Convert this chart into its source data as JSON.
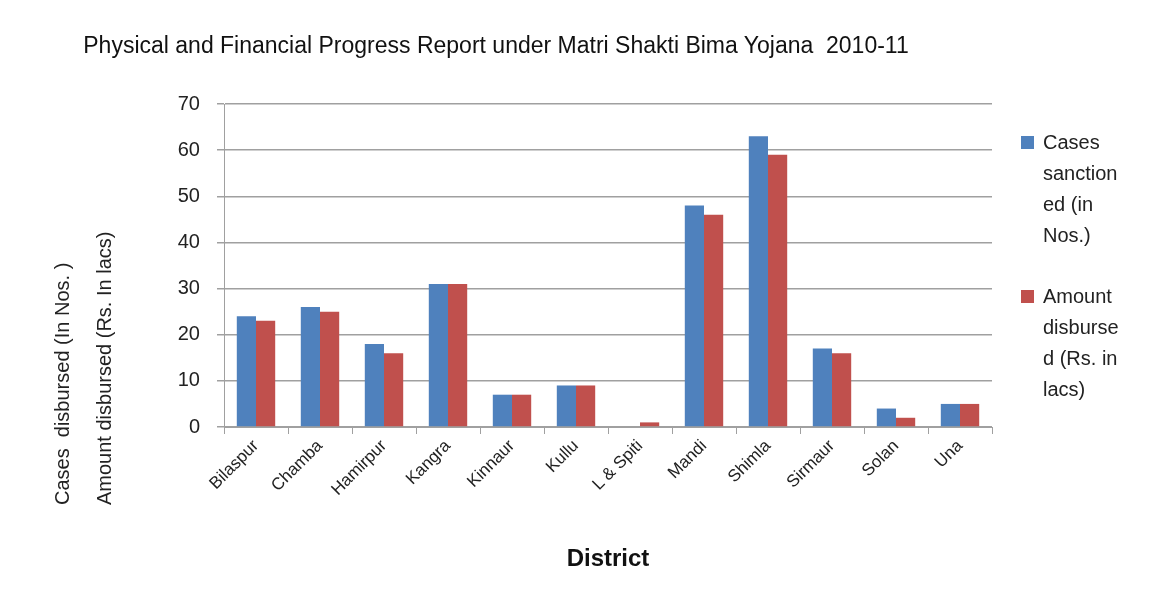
{
  "chart_data": {
    "type": "bar",
    "title": "Physical and Financial Progress Report under Matri Shakti Bima Yojana  2010-11",
    "xlabel": "District",
    "ylabel": "Cases  disbursed (In Nos. )\nAmount disbursed (Rs. In lacs)",
    "categories": [
      "Bilaspur",
      "Chamba",
      "Hamirpur",
      "Kangra",
      "Kinnaur",
      "Kullu",
      "L & Spiti",
      "Mandi",
      "Shimla",
      "Sirmaur",
      "Solan",
      "Una"
    ],
    "series": [
      {
        "name": "Cases sanctioned (in Nos.)",
        "color": "#4f81bd",
        "values": [
          24,
          26,
          18,
          31,
          7,
          9,
          0,
          48,
          63,
          17,
          4,
          5
        ]
      },
      {
        "name": "Amount disbursed (Rs. in lacs)",
        "color": "#c0504d",
        "values": [
          23,
          25,
          16,
          31,
          7,
          9,
          1,
          46,
          59,
          16,
          2,
          5
        ]
      }
    ],
    "ylim": [
      0,
      70
    ],
    "yticks": [
      0,
      10,
      20,
      30,
      40,
      50,
      60,
      70
    ],
    "grid": "y",
    "legend": "right"
  }
}
